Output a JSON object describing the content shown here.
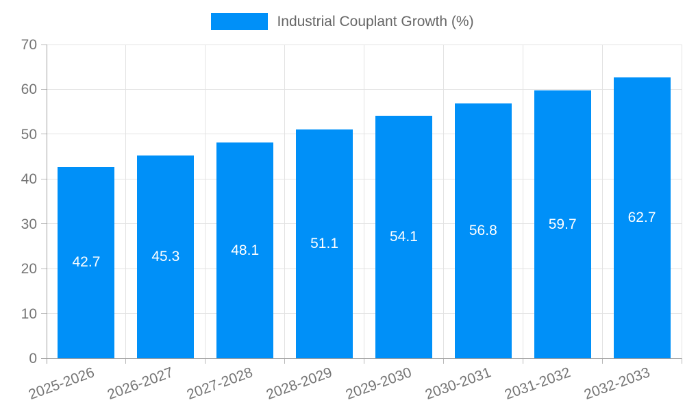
{
  "chart_data": {
    "type": "bar",
    "title": "Industrial Couplant Growth (%)",
    "legend_label": "Industrial Couplant Growth (%)",
    "legend_position": "top",
    "categories": [
      "2025-2026",
      "2026-2027",
      "2027-2028",
      "2028-2029",
      "2029-2030",
      "2030-2031",
      "2031-2032",
      "2032-2033"
    ],
    "values": [
      42.7,
      45.3,
      48.1,
      51.1,
      54.1,
      56.8,
      59.7,
      62.7
    ],
    "value_labels": [
      "42.7",
      "45.3",
      "48.1",
      "51.1",
      "54.1",
      "56.8",
      "59.7",
      "62.7"
    ],
    "xlabel": "",
    "ylabel": "",
    "ylim": [
      0,
      70
    ],
    "y_ticks": [
      0,
      10,
      20,
      30,
      40,
      50,
      60,
      70
    ],
    "grid": true,
    "x_label_rotation_deg": -20,
    "colors": {
      "bar": "#0090f8",
      "value_label": "#ffffff",
      "tick_label": "#757575",
      "legend_text": "#666666",
      "gridline": "#e2e2e2",
      "axis_line": "#9e9e9e",
      "tick_mark": "#b8b8b8",
      "background": "#ffffff"
    }
  }
}
